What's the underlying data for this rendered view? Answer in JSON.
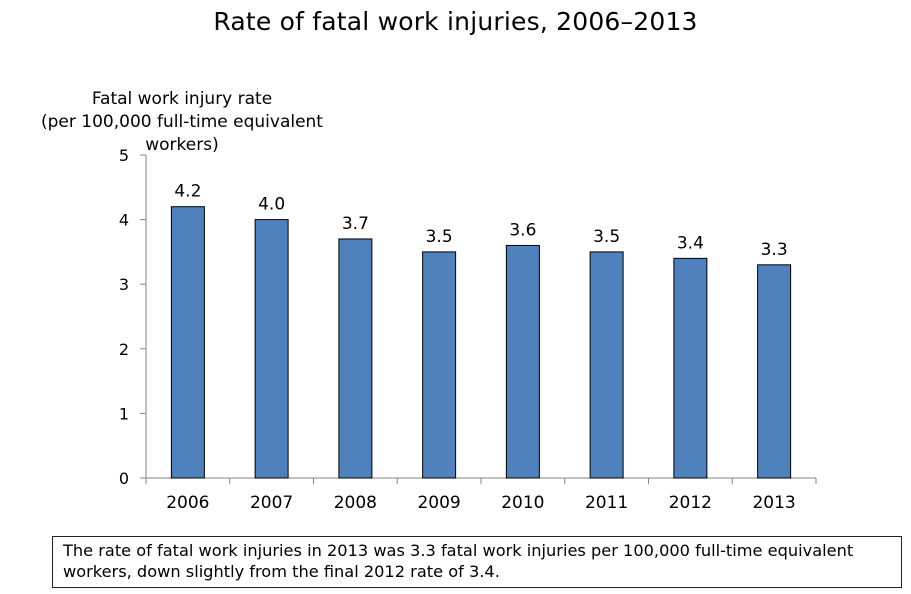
{
  "chart_data": {
    "type": "bar",
    "title": "Rate of fatal work injuries, 2006–2013",
    "ylabel_lines": [
      "Fatal work injury rate",
      "(per 100,000 full-time equivalent workers)"
    ],
    "xlabel": "",
    "categories": [
      "2006",
      "2007",
      "2008",
      "2009",
      "2010",
      "2011",
      "2012",
      "2013"
    ],
    "values": [
      4.2,
      4.0,
      3.7,
      3.5,
      3.6,
      3.5,
      3.4,
      3.3
    ],
    "data_labels": [
      "4.2",
      "4.0",
      "3.7",
      "3.5",
      "3.6",
      "3.5",
      "3.4",
      "3.3"
    ],
    "ylim": [
      0,
      5
    ],
    "yticks": [
      0,
      1,
      2,
      3,
      4,
      5
    ],
    "grid": false,
    "legend": "none",
    "bar_color": "#4f81bd",
    "bar_edge_color": "#000000"
  },
  "caption": "The rate of fatal work injuries in 2013 was 3.3 fatal work injuries per 100,000 full-time equivalent workers, down slightly from the final 2012 rate of 3.4."
}
